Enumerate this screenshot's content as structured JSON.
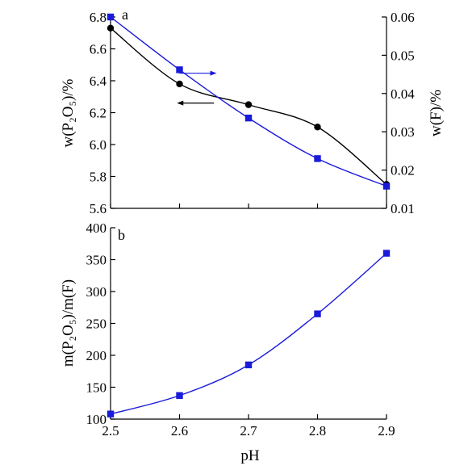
{
  "chart_data": [
    {
      "type": "line",
      "panel_label": "a",
      "x": [
        2.5,
        2.6,
        2.7,
        2.8,
        2.9
      ],
      "xlim": [
        2.5,
        2.9
      ],
      "ylabel_left": "w(P₂O₅)/%",
      "ylabel_right": "w(F)/%",
      "ylim_left": [
        5.6,
        6.8
      ],
      "ylim_right": [
        0.01,
        0.06
      ],
      "left_ticks": [
        "5.6",
        "5.8",
        "6.0",
        "6.2",
        "6.4",
        "6.6",
        "6.8"
      ],
      "right_ticks": [
        "0.01",
        "0.02",
        "0.03",
        "0.04",
        "0.05",
        "0.06"
      ],
      "series": [
        {
          "axis": "left",
          "marker": "circle",
          "color": "#000000",
          "values": [
            6.73,
            6.38,
            6.25,
            6.11,
            5.75
          ]
        },
        {
          "axis": "right",
          "marker": "square",
          "color": "#1a1adb",
          "values": [
            0.06,
            0.0462,
            0.0336,
            0.023,
            0.0158
          ]
        }
      ],
      "arrows": [
        {
          "points_to": "right",
          "at_x": 2.6,
          "at_y_right": 0.0453,
          "color": "#1a1adb"
        },
        {
          "points_to": "left",
          "at_x": 2.65,
          "at_y_left": 6.26,
          "color": "#000000"
        }
      ]
    },
    {
      "type": "line",
      "panel_label": "b",
      "x": [
        2.5,
        2.6,
        2.7,
        2.8,
        2.9
      ],
      "xlim": [
        2.5,
        2.9
      ],
      "xlabel": "pH",
      "xticks": [
        "2.5",
        "2.6",
        "2.7",
        "2.8",
        "2.9"
      ],
      "ylabel": "m(P₂O₅)/m(F)",
      "ylim": [
        100,
        400
      ],
      "yticks": [
        "100",
        "150",
        "200",
        "250",
        "300",
        "350",
        "400"
      ],
      "series": [
        {
          "marker": "square",
          "color": "#1a1adb",
          "values": [
            108,
            137,
            185,
            265,
            360
          ]
        }
      ]
    }
  ]
}
